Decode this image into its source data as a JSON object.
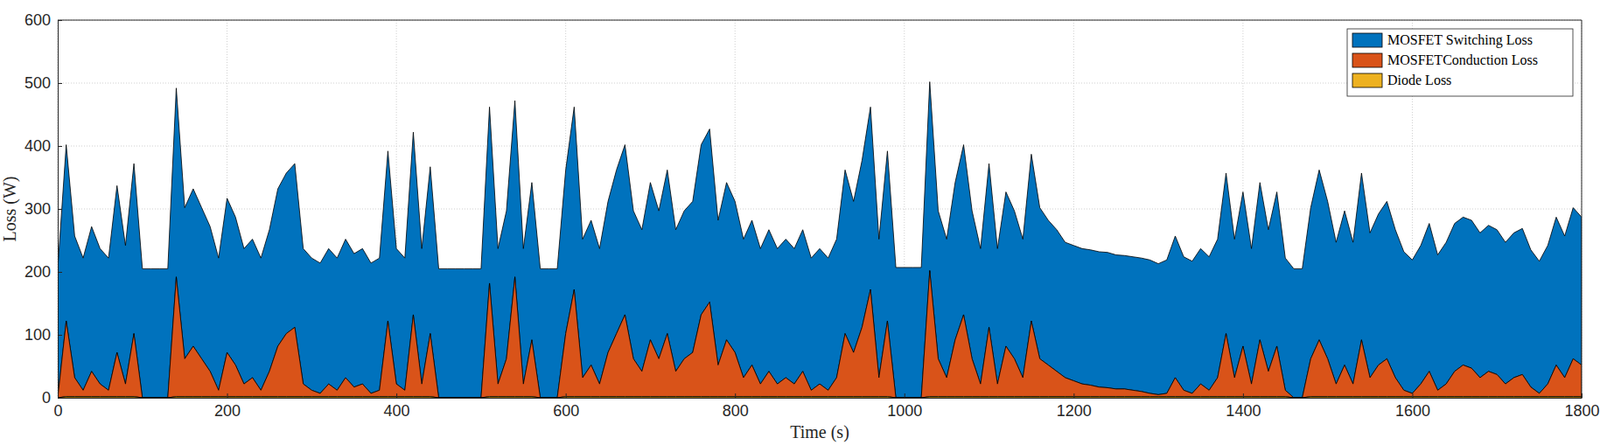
{
  "chart_data": {
    "type": "area",
    "stacked": true,
    "grid": true,
    "legend": "top-right",
    "x_label": "Time (s)",
    "y_label": "Loss (W)",
    "xlim": [
      0,
      1800
    ],
    "ylim": [
      0,
      600
    ],
    "xticks": [
      0,
      200,
      400,
      600,
      800,
      1000,
      1200,
      1400,
      1600,
      1800
    ],
    "yticks": [
      0,
      100,
      200,
      300,
      400,
      500,
      600
    ],
    "x": [
      0,
      10,
      20,
      30,
      40,
      50,
      60,
      70,
      80,
      90,
      100,
      110,
      120,
      130,
      140,
      150,
      160,
      170,
      180,
      190,
      200,
      210,
      220,
      230,
      240,
      250,
      260,
      270,
      280,
      290,
      300,
      310,
      320,
      330,
      340,
      350,
      360,
      370,
      380,
      390,
      400,
      410,
      420,
      430,
      440,
      450,
      460,
      470,
      480,
      490,
      500,
      510,
      520,
      530,
      540,
      550,
      560,
      570,
      580,
      590,
      600,
      610,
      620,
      630,
      640,
      650,
      660,
      670,
      680,
      690,
      700,
      710,
      720,
      730,
      740,
      750,
      760,
      770,
      780,
      790,
      800,
      810,
      820,
      830,
      840,
      850,
      860,
      870,
      880,
      890,
      900,
      910,
      920,
      930,
      940,
      950,
      960,
      970,
      980,
      990,
      1000,
      1010,
      1020,
      1030,
      1040,
      1050,
      1060,
      1070,
      1080,
      1090,
      1100,
      1110,
      1120,
      1130,
      1140,
      1150,
      1160,
      1170,
      1180,
      1190,
      1200,
      1210,
      1220,
      1230,
      1240,
      1250,
      1260,
      1270,
      1280,
      1290,
      1300,
      1310,
      1320,
      1330,
      1340,
      1350,
      1360,
      1370,
      1380,
      1390,
      1400,
      1410,
      1420,
      1430,
      1440,
      1450,
      1460,
      1470,
      1480,
      1490,
      1500,
      1510,
      1520,
      1530,
      1540,
      1550,
      1560,
      1570,
      1580,
      1590,
      1600,
      1610,
      1620,
      1630,
      1640,
      1650,
      1660,
      1670,
      1680,
      1690,
      1700,
      1710,
      1720,
      1730,
      1740,
      1750,
      1760,
      1770,
      1780,
      1790,
      1800
    ],
    "series": [
      {
        "name": "MOSFET Switching Loss",
        "color": "#0072BD",
        "values": [
          205,
          280,
          225,
          210,
          230,
          215,
          210,
          265,
          220,
          270,
          205,
          205,
          205,
          205,
          300,
          240,
          250,
          240,
          230,
          210,
          245,
          235,
          215,
          220,
          210,
          225,
          250,
          255,
          260,
          215,
          210,
          207,
          215,
          210,
          220,
          212,
          215,
          207,
          210,
          270,
          215,
          210,
          290,
          215,
          265,
          205,
          205,
          205,
          205,
          205,
          205,
          280,
          215,
          235,
          280,
          215,
          250,
          205,
          205,
          205,
          260,
          290,
          220,
          230,
          215,
          240,
          260,
          270,
          235,
          225,
          250,
          235,
          260,
          225,
          235,
          240,
          270,
          275,
          230,
          250,
          240,
          220,
          230,
          215,
          225,
          215,
          220,
          215,
          225,
          210,
          215,
          210,
          220,
          260,
          240,
          265,
          290,
          220,
          270,
          207,
          207,
          207,
          207,
          300,
          235,
          220,
          250,
          270,
          235,
          215,
          260,
          215,
          245,
          235,
          220,
          265,
          240,
          230,
          225,
          215,
          215,
          215,
          215,
          215,
          215,
          213,
          212,
          212,
          212,
          212,
          208,
          212,
          225,
          212,
          210,
          215,
          212,
          220,
          255,
          220,
          245,
          215,
          250,
          225,
          245,
          210,
          205,
          205,
          240,
          270,
          250,
          225,
          245,
          225,
          265,
          230,
          240,
          250,
          235,
          220,
          212,
          220,
          235,
          215,
          225,
          235,
          235,
          235,
          230,
          232,
          230,
          225,
          230,
          232,
          218,
          210,
          220,
          235,
          225,
          240,
          235
        ]
      },
      {
        "name": "MOSFETConduction Loss",
        "color": "#D95319",
        "values": [
          0,
          120,
          30,
          10,
          40,
          20,
          10,
          70,
          20,
          100,
          0,
          0,
          0,
          0,
          190,
          60,
          80,
          60,
          40,
          10,
          70,
          50,
          20,
          30,
          10,
          40,
          80,
          100,
          110,
          20,
          10,
          5,
          20,
          10,
          30,
          15,
          20,
          5,
          10,
          120,
          20,
          10,
          130,
          20,
          100,
          0,
          0,
          0,
          0,
          0,
          0,
          180,
          20,
          60,
          190,
          20,
          90,
          0,
          0,
          0,
          100,
          170,
          30,
          50,
          20,
          70,
          100,
          130,
          60,
          40,
          90,
          60,
          100,
          40,
          60,
          70,
          130,
          150,
          50,
          90,
          70,
          30,
          50,
          20,
          40,
          20,
          30,
          20,
          40,
          10,
          20,
          10,
          30,
          100,
          70,
          110,
          170,
          30,
          120,
          0,
          0,
          0,
          0,
          200,
          60,
          30,
          90,
          130,
          60,
          20,
          110,
          20,
          80,
          60,
          30,
          120,
          60,
          50,
          40,
          30,
          25,
          20,
          18,
          15,
          14,
          12,
          12,
          10,
          8,
          5,
          3,
          5,
          30,
          10,
          5,
          20,
          10,
          30,
          100,
          30,
          80,
          20,
          90,
          40,
          80,
          10,
          0,
          0,
          60,
          90,
          60,
          20,
          50,
          20,
          90,
          30,
          50,
          60,
          30,
          10,
          5,
          20,
          40,
          10,
          20,
          40,
          50,
          45,
          30,
          40,
          35,
          20,
          30,
          35,
          15,
          5,
          20,
          50,
          30,
          60,
          50
        ]
      },
      {
        "name": "Diode Loss",
        "color": "#EDB120",
        "values": [
          0,
          2,
          2,
          2,
          2,
          2,
          2,
          2,
          2,
          2,
          0,
          0,
          0,
          0,
          2,
          2,
          2,
          2,
          2,
          2,
          2,
          2,
          2,
          2,
          2,
          2,
          2,
          2,
          2,
          2,
          2,
          2,
          2,
          2,
          2,
          2,
          2,
          2,
          2,
          2,
          2,
          2,
          2,
          2,
          2,
          0,
          0,
          0,
          0,
          0,
          0,
          2,
          2,
          2,
          2,
          2,
          2,
          0,
          0,
          0,
          2,
          2,
          2,
          2,
          2,
          2,
          2,
          2,
          2,
          2,
          2,
          2,
          2,
          2,
          2,
          2,
          2,
          2,
          2,
          2,
          2,
          2,
          2,
          2,
          2,
          2,
          2,
          2,
          2,
          2,
          2,
          2,
          2,
          2,
          2,
          2,
          2,
          2,
          2,
          0,
          0,
          0,
          0,
          2,
          2,
          2,
          2,
          2,
          2,
          2,
          2,
          2,
          2,
          2,
          2,
          2,
          2,
          2,
          2,
          2,
          2,
          2,
          2,
          2,
          2,
          2,
          2,
          2,
          2,
          2,
          2,
          2,
          2,
          2,
          2,
          2,
          2,
          2,
          2,
          2,
          2,
          2,
          2,
          2,
          2,
          2,
          0,
          0,
          2,
          2,
          2,
          2,
          2,
          2,
          2,
          2,
          2,
          2,
          2,
          2,
          2,
          2,
          2,
          2,
          2,
          2,
          2,
          2,
          2,
          2,
          2,
          2,
          2,
          2,
          2,
          2,
          2,
          2,
          2,
          2,
          2
        ]
      }
    ]
  }
}
